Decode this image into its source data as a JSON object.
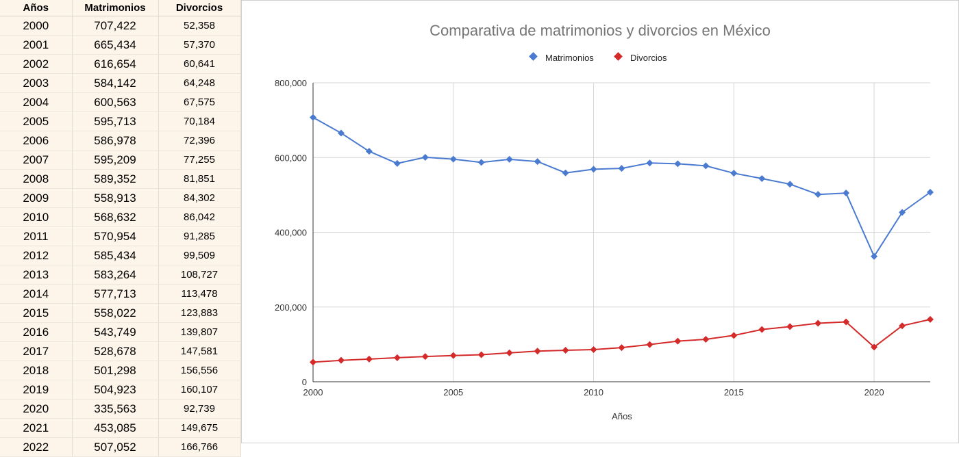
{
  "table": {
    "headers": [
      "Años",
      "Matrimonios",
      "Divorcios"
    ],
    "rows": [
      [
        "2000",
        "707,422",
        "52,358"
      ],
      [
        "2001",
        "665,434",
        "57,370"
      ],
      [
        "2002",
        "616,654",
        "60,641"
      ],
      [
        "2003",
        "584,142",
        "64,248"
      ],
      [
        "2004",
        "600,563",
        "67,575"
      ],
      [
        "2005",
        "595,713",
        "70,184"
      ],
      [
        "2006",
        "586,978",
        "72,396"
      ],
      [
        "2007",
        "595,209",
        "77,255"
      ],
      [
        "2008",
        "589,352",
        "81,851"
      ],
      [
        "2009",
        "558,913",
        "84,302"
      ],
      [
        "2010",
        "568,632",
        "86,042"
      ],
      [
        "2011",
        "570,954",
        "91,285"
      ],
      [
        "2012",
        "585,434",
        "99,509"
      ],
      [
        "2013",
        "583,264",
        "108,727"
      ],
      [
        "2014",
        "577,713",
        "113,478"
      ],
      [
        "2015",
        "558,022",
        "123,883"
      ],
      [
        "2016",
        "543,749",
        "139,807"
      ],
      [
        "2017",
        "528,678",
        "147,581"
      ],
      [
        "2018",
        "501,298",
        "156,556"
      ],
      [
        "2019",
        "504,923",
        "160,107"
      ],
      [
        "2020",
        "335,563",
        "92,739"
      ],
      [
        "2021",
        "453,085",
        "149,675"
      ],
      [
        "2022",
        "507,052",
        "166,766"
      ]
    ]
  },
  "chart_data": {
    "type": "line",
    "title": "Comparativa de matrimonios y divorcios en México",
    "xlabel": "Años",
    "ylabel": "",
    "x": [
      2000,
      2001,
      2002,
      2003,
      2004,
      2005,
      2006,
      2007,
      2008,
      2009,
      2010,
      2011,
      2012,
      2013,
      2014,
      2015,
      2016,
      2017,
      2018,
      2019,
      2020,
      2021,
      2022
    ],
    "series": [
      {
        "name": "Matrimonios",
        "color": "#4a7bd0",
        "values": [
          707422,
          665434,
          616654,
          584142,
          600563,
          595713,
          586978,
          595209,
          589352,
          558913,
          568632,
          570954,
          585434,
          583264,
          577713,
          558022,
          543749,
          528678,
          501298,
          504923,
          335563,
          453085,
          507052
        ]
      },
      {
        "name": "Divorcios",
        "color": "#d42a2a",
        "values": [
          52358,
          57370,
          60641,
          64248,
          67575,
          70184,
          72396,
          77255,
          81851,
          84302,
          86042,
          91285,
          99509,
          108727,
          113478,
          123883,
          139807,
          147581,
          156556,
          160107,
          92739,
          149675,
          166766
        ]
      }
    ],
    "xlim": [
      2000,
      2022
    ],
    "ylim": [
      0,
      800000
    ],
    "x_ticks": [
      2000,
      2005,
      2010,
      2015,
      2020
    ],
    "x_tick_labels": [
      "2000",
      "2005",
      "2010",
      "2015",
      "2020"
    ],
    "y_ticks": [
      0,
      200000,
      400000,
      600000,
      800000
    ],
    "y_tick_labels": [
      "0",
      "200,000",
      "400,000",
      "600,000",
      "800,000"
    ],
    "grid": true,
    "legend_position": "top",
    "marker": "diamond"
  }
}
